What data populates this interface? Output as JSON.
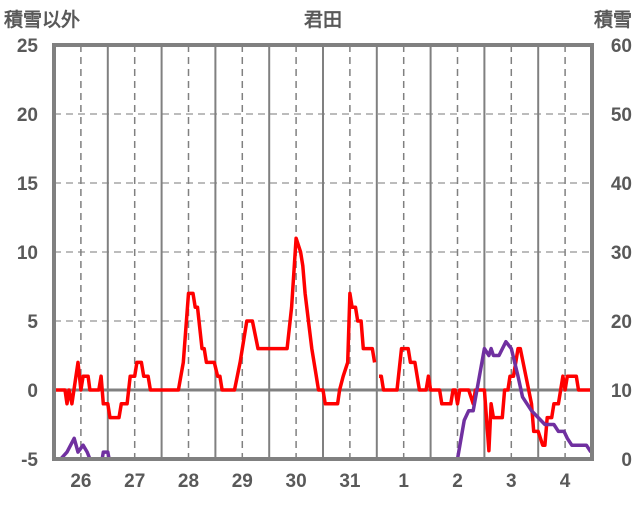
{
  "chart_data": {
    "type": "line",
    "title": "君田",
    "left_axis_title": "積雪以外",
    "right_axis_title": "積雪",
    "x_unit": "hours since day 26 00:00",
    "xlim": [
      0,
      240
    ],
    "x_tick_labels": [
      "26",
      "27",
      "28",
      "29",
      "30",
      "31",
      "1",
      "2",
      "3",
      "4"
    ],
    "ylim_left": [
      -5,
      25
    ],
    "y_ticks_left": [
      25,
      20,
      15,
      10,
      5,
      0,
      -5
    ],
    "ylim_right": [
      0,
      60
    ],
    "y_ticks_right": [
      60,
      50,
      40,
      30,
      20,
      10,
      0
    ],
    "grid": true,
    "series": [
      {
        "name": "積雪以外",
        "axis": "left",
        "color": "#ff0000",
        "points": [
          [
            0,
            0
          ],
          [
            4.9,
            0
          ],
          [
            5.8,
            -1
          ],
          [
            6.7,
            0
          ],
          [
            8,
            -1
          ],
          [
            10.7,
            2
          ],
          [
            12,
            0
          ],
          [
            13,
            1
          ],
          [
            15.2,
            1
          ],
          [
            16,
            0
          ],
          [
            20,
            0
          ],
          [
            21,
            1
          ],
          [
            22,
            -1
          ],
          [
            24,
            -1
          ],
          [
            25,
            -2
          ],
          [
            29,
            -2
          ],
          [
            30,
            -1
          ],
          [
            32.6,
            -1
          ],
          [
            34,
            1
          ],
          [
            36,
            1
          ],
          [
            37,
            2
          ],
          [
            39,
            2
          ],
          [
            40,
            1
          ],
          [
            42,
            1
          ],
          [
            43,
            0
          ],
          [
            55.5,
            0
          ],
          [
            57.7,
            2
          ],
          [
            60,
            7
          ],
          [
            62,
            7
          ],
          [
            63,
            6
          ],
          [
            64,
            6
          ],
          [
            66,
            3
          ],
          [
            67,
            3
          ],
          [
            68,
            2
          ],
          [
            71.5,
            2
          ],
          [
            73,
            1
          ],
          [
            74,
            1
          ],
          [
            75,
            0
          ],
          [
            80.5,
            0
          ],
          [
            83,
            2
          ],
          [
            86,
            5
          ],
          [
            88.5,
            5
          ],
          [
            91,
            3
          ],
          [
            104,
            3
          ],
          [
            106,
            6
          ],
          [
            108,
            11
          ],
          [
            110,
            10
          ],
          [
            111,
            9
          ],
          [
            112,
            7
          ],
          [
            115,
            3
          ],
          [
            117,
            1
          ],
          [
            118,
            0
          ],
          [
            120,
            0
          ],
          [
            121,
            -1
          ],
          [
            126.5,
            -1
          ],
          [
            127.4,
            0
          ],
          [
            129,
            1
          ],
          [
            131,
            2
          ],
          [
            132,
            7
          ],
          [
            133,
            6
          ],
          [
            134.5,
            6
          ],
          [
            135.5,
            5
          ],
          [
            137,
            5
          ],
          [
            138,
            3
          ],
          [
            142,
            3
          ],
          [
            143,
            2
          ],
          null,
          [
            145,
            1
          ],
          [
            146,
            1
          ],
          [
            147,
            0
          ],
          [
            153,
            0
          ],
          [
            155,
            3
          ],
          [
            158,
            3
          ],
          [
            159,
            2
          ],
          [
            161,
            2
          ],
          [
            163,
            0
          ],
          [
            166,
            0
          ],
          [
            167,
            1
          ],
          [
            168,
            0
          ],
          [
            172,
            0
          ],
          [
            173,
            -1
          ],
          [
            177,
            -1
          ],
          [
            178,
            0
          ],
          [
            179,
            0
          ],
          [
            180,
            -1
          ],
          [
            181,
            0
          ],
          [
            185,
            0
          ],
          [
            187,
            -1
          ],
          [
            188,
            0
          ],
          [
            192,
            0
          ],
          [
            194,
            -4.4
          ],
          [
            195,
            -1
          ],
          [
            196,
            -2
          ],
          [
            200,
            -2
          ],
          [
            201,
            0
          ],
          [
            202.5,
            0
          ],
          [
            203.4,
            1
          ],
          [
            205,
            1
          ],
          [
            207,
            3
          ],
          [
            208,
            3
          ],
          [
            210.5,
            1
          ],
          [
            213,
            -1
          ],
          [
            214,
            -3
          ],
          [
            216,
            -3
          ],
          [
            218,
            -4
          ],
          [
            219,
            -4
          ],
          [
            220,
            -2
          ],
          [
            222,
            -2
          ],
          [
            223,
            -1
          ],
          [
            225,
            -1
          ],
          [
            227,
            1
          ],
          [
            228,
            0
          ],
          [
            229,
            1
          ],
          [
            233,
            1
          ],
          [
            234,
            0
          ],
          [
            240,
            0
          ]
        ]
      },
      {
        "name": "積雪",
        "axis": "right",
        "color": "#7030a0",
        "points": [
          [
            0,
            0
          ],
          [
            3,
            0
          ],
          [
            5.8,
            1
          ],
          [
            9,
            3
          ],
          [
            10.7,
            1
          ],
          [
            13,
            2
          ],
          [
            14.8,
            1
          ],
          [
            16,
            0
          ],
          [
            21.5,
            0
          ],
          [
            22,
            1
          ],
          [
            24,
            1
          ],
          [
            24.6,
            0
          ],
          [
            180,
            0
          ],
          [
            183,
            5.6
          ],
          [
            185,
            7
          ],
          [
            187,
            7
          ],
          [
            192,
            16
          ],
          [
            194,
            15
          ],
          [
            195,
            16
          ],
          [
            196,
            15
          ],
          [
            198.5,
            15
          ],
          [
            201.6,
            17
          ],
          [
            204,
            16
          ],
          [
            207,
            12
          ],
          [
            209,
            9
          ],
          [
            213,
            7
          ],
          [
            216,
            6
          ],
          [
            219,
            5
          ],
          [
            223,
            5
          ],
          [
            225,
            4
          ],
          [
            227.5,
            4
          ],
          [
            229,
            3
          ],
          [
            231,
            2
          ],
          [
            237.5,
            2
          ],
          [
            239.5,
            1
          ]
        ]
      }
    ]
  }
}
